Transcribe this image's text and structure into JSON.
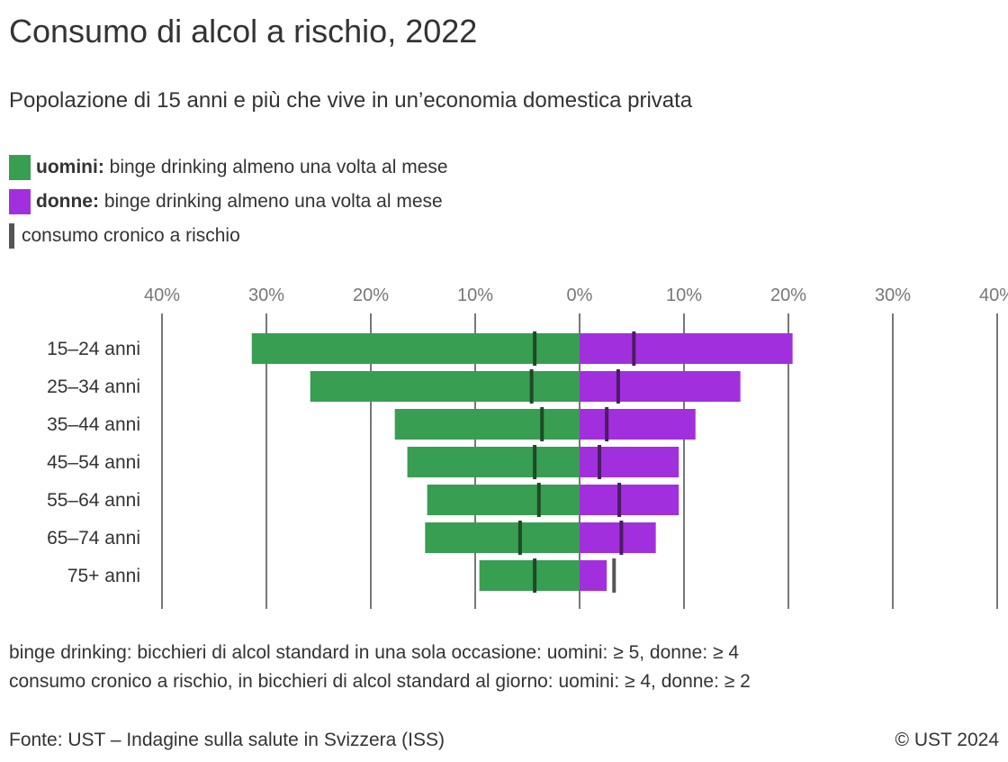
{
  "title": "Consumo di alcol a rischio, 2022",
  "subtitle": "Popolazione di 15 anni e più che vive in un’economia domestica privata",
  "legend": [
    {
      "bold": "uomini:",
      "text": " binge drinking almeno una volta al mese",
      "color": "#389e51"
    },
    {
      "bold": "donne:",
      "text": " binge drinking almeno una volta al mese",
      "color": "#a22fdd"
    },
    {
      "bold": "",
      "text": "consumo cronico a rischio",
      "color": "#555555"
    }
  ],
  "notes": [
    "binge drinking: bicchieri di alcol standard in una sola occasione: uomini: ≥ 5, donne: ≥ 4",
    "consumo cronico a rischio, in bicchieri di alcol standard al giorno: uomini: ≥ 4, donne: ≥ 2"
  ],
  "source": "Fonte: UST – Indagine sulla salute in Svizzera (ISS)",
  "copyright": "© UST 2024",
  "chart_data": {
    "type": "bar",
    "orientation": "horizontal-diverging",
    "categories": [
      "15–24 anni",
      "25–34 anni",
      "35–44 anni",
      "45–54 anni",
      "55–64 anni",
      "65–74 anni",
      "75+ anni"
    ],
    "x_ticks": [
      "40%",
      "30%",
      "20%",
      "10%",
      "0%",
      "10%",
      "20%",
      "30%",
      "40%"
    ],
    "xlim": [
      -40,
      40
    ],
    "grid": true,
    "series": [
      {
        "side": "left",
        "color": "#389e51",
        "values": [
          31.4,
          25.8,
          17.7,
          16.5,
          14.6,
          14.8,
          9.6
        ]
      },
      {
        "side": "right",
        "color": "#a22fdd",
        "values": [
          20.4,
          15.4,
          11.1,
          9.5,
          9.5,
          7.3,
          2.6
        ]
      },
      {
        "type": "marker",
        "side": "left",
        "values": [
          4.3,
          4.6,
          3.6,
          4.3,
          3.9,
          5.7,
          4.3
        ]
      },
      {
        "type": "marker",
        "side": "right",
        "values": [
          5.2,
          3.7,
          2.6,
          1.9,
          3.8,
          4.0,
          3.3
        ]
      }
    ]
  }
}
